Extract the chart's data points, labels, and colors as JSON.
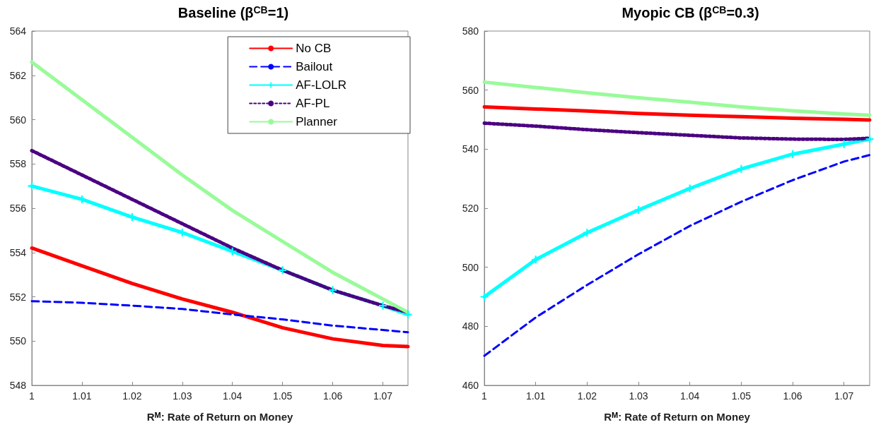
{
  "chart_data": [
    {
      "type": "line",
      "title": "Baseline (β$^{CB}$=1)",
      "xlabel": "R$^{M}$: Rate of Return on Money",
      "x": [
        1,
        1.01,
        1.02,
        1.03,
        1.04,
        1.05,
        1.06,
        1.07,
        1.075
      ],
      "xlim": [
        1,
        1.075
      ],
      "xticks": [
        1,
        1.01,
        1.02,
        1.03,
        1.04,
        1.05,
        1.06,
        1.07
      ],
      "ylim": [
        548,
        564
      ],
      "yticks": [
        548,
        550,
        552,
        554,
        556,
        558,
        560,
        562,
        564
      ],
      "legend": "top right",
      "grid": false,
      "series": [
        {
          "name": "No CB",
          "color": "#ff0000",
          "line_style": "solid",
          "values": [
            554.2,
            553.4,
            552.6,
            551.9,
            551.3,
            550.6,
            550.1,
            549.8,
            549.75
          ]
        },
        {
          "name": "Bailout",
          "color": "#0000ff",
          "line_style": "dashed",
          "values": [
            551.8,
            551.73,
            551.6,
            551.45,
            551.2,
            550.98,
            550.7,
            550.5,
            550.4
          ]
        },
        {
          "name": "AF-LOLR",
          "color": "#00ffff",
          "line_style": "solid",
          "marker": "cross",
          "values": [
            557.0,
            556.4,
            555.6,
            554.9,
            554.05,
            553.2,
            552.3,
            551.6,
            551.2
          ]
        },
        {
          "name": "AF-PL",
          "color": "#4b0082",
          "line_style": "dotted",
          "values": [
            558.6,
            557.5,
            556.4,
            555.3,
            554.2,
            553.2,
            552.3,
            551.6,
            551.3
          ]
        },
        {
          "name": "Planner",
          "color": "#98fb98",
          "line_style": "solid",
          "values": [
            562.6,
            560.9,
            559.2,
            557.5,
            555.9,
            554.5,
            553.1,
            551.9,
            551.3
          ]
        }
      ]
    },
    {
      "type": "line",
      "title": "Myopic CB (β$^{CB}$=0.3)",
      "xlabel": "R$^{M}$: Rate of Return on Money",
      "x": [
        1,
        1.01,
        1.02,
        1.03,
        1.04,
        1.05,
        1.06,
        1.07,
        1.075
      ],
      "xlim": [
        1,
        1.075
      ],
      "xticks": [
        1,
        1.01,
        1.02,
        1.03,
        1.04,
        1.05,
        1.06,
        1.07
      ],
      "ylim": [
        460,
        580
      ],
      "yticks": [
        460,
        480,
        500,
        520,
        540,
        560,
        580
      ],
      "grid": false,
      "series": [
        {
          "color": "#ff0000",
          "line_style": "solid",
          "values": [
            554.3,
            553.6,
            552.9,
            552.1,
            551.5,
            551.0,
            550.5,
            550.1,
            549.9
          ]
        },
        {
          "color": "#0000ff",
          "line_style": "dashed",
          "values": [
            470,
            483,
            494,
            504.4,
            514,
            522.2,
            529.5,
            535.8,
            538
          ]
        },
        {
          "color": "#00ffff",
          "line_style": "solid",
          "marker": "cross",
          "values": [
            490,
            502.6,
            511.7,
            519.4,
            526.7,
            533.3,
            538.3,
            541.7,
            543.4
          ]
        },
        {
          "color": "#4b0082",
          "line_style": "dotted",
          "values": [
            548.8,
            547.8,
            546.6,
            545.6,
            544.7,
            543.8,
            543.4,
            543.3,
            543.7
          ]
        },
        {
          "color": "#98fb98",
          "line_style": "solid",
          "values": [
            562.7,
            560.9,
            559.1,
            557.4,
            555.9,
            554.3,
            553.0,
            551.9,
            551.5
          ]
        }
      ]
    }
  ]
}
